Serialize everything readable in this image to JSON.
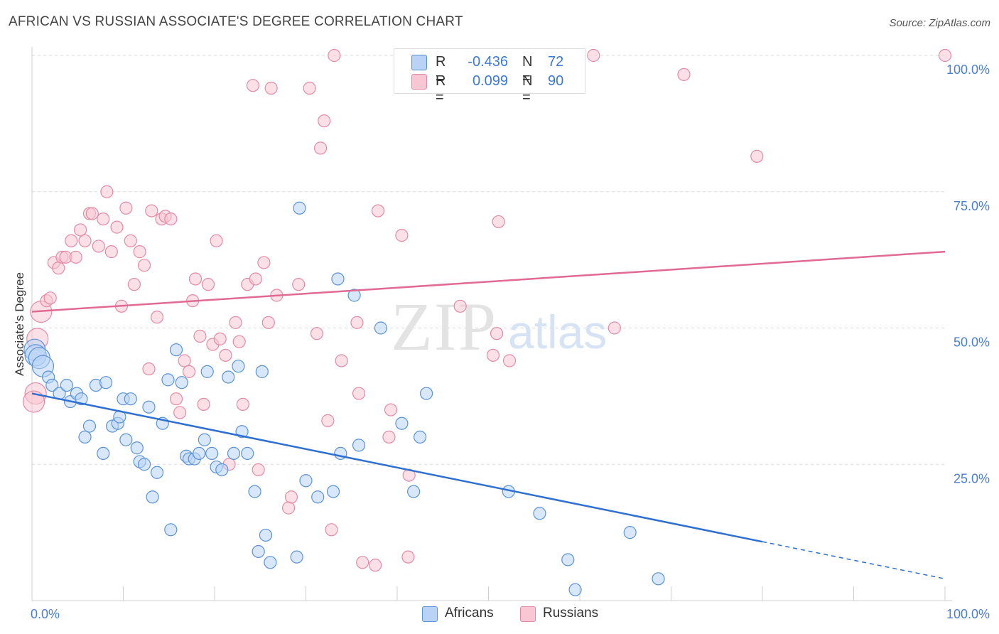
{
  "header": {
    "title": "AFRICAN VS RUSSIAN ASSOCIATE'S DEGREE CORRELATION CHART",
    "source": "Source: ZipAtlas.com"
  },
  "legend": {
    "africans": {
      "r_label": "R =",
      "r_value": "-0.436",
      "n_label": "N =",
      "n_value": "72"
    },
    "russians": {
      "r_label": "R =",
      "r_value": "0.099",
      "n_label": "N =",
      "n_value": "90"
    }
  },
  "bottom_legend": {
    "africans": "Africans",
    "russians": "Russians"
  },
  "watermark": {
    "zip": "ZIP",
    "atlas": "atlas"
  },
  "colors": {
    "africans_fill": "#b8d3f5",
    "africans_stroke": "#5b93d8",
    "africans_line": "#2e6fd1",
    "russians_fill": "#f9c6d4",
    "russians_stroke": "#e48aa6",
    "russians_line": "#e06a94",
    "tick_label": "#4a7fd4"
  },
  "chart_data": {
    "type": "scatter",
    "title": "AFRICAN VS RUSSIAN ASSOCIATE'S DEGREE CORRELATION CHART",
    "xlabel": "",
    "ylabel": "Associate's Degree",
    "xlim": [
      0,
      100
    ],
    "ylim": [
      0,
      100
    ],
    "x_tick_labels": [
      "0.0%",
      "100.0%"
    ],
    "y_tick_labels": [
      "25.0%",
      "50.0%",
      "75.0%",
      "100.0%"
    ],
    "y_ticks": [
      25,
      50,
      75,
      100
    ],
    "grid": true,
    "legend_position": "top-center",
    "series": [
      {
        "name": "Africans",
        "r": -0.436,
        "n": 72,
        "trend": {
          "x0": 0,
          "y0": 38,
          "x1": 100,
          "y1": 4,
          "solid_until": 80
        },
        "points": [
          [
            0.3,
            46
          ],
          [
            0.4,
            45
          ],
          [
            0.8,
            44.5
          ],
          [
            1.2,
            43
          ],
          [
            1.8,
            41
          ],
          [
            2.2,
            39.5
          ],
          [
            3,
            38
          ],
          [
            3.8,
            39.5
          ],
          [
            4.2,
            36.5
          ],
          [
            4.9,
            38
          ],
          [
            5.4,
            37
          ],
          [
            5.8,
            30
          ],
          [
            6.3,
            32
          ],
          [
            7,
            39.5
          ],
          [
            7.8,
            27
          ],
          [
            8.1,
            40
          ],
          [
            8.8,
            32
          ],
          [
            9.4,
            32.5
          ],
          [
            9.6,
            33.7
          ],
          [
            10,
            37
          ],
          [
            10.3,
            29.5
          ],
          [
            10.8,
            37
          ],
          [
            11.5,
            28
          ],
          [
            11.8,
            25.5
          ],
          [
            12.3,
            25
          ],
          [
            12.8,
            35.5
          ],
          [
            13.2,
            19
          ],
          [
            13.7,
            23.5
          ],
          [
            14.3,
            32.5
          ],
          [
            14.9,
            40.5
          ],
          [
            15.2,
            13
          ],
          [
            15.8,
            46
          ],
          [
            16.4,
            40
          ],
          [
            16.9,
            26.5
          ],
          [
            17.2,
            26
          ],
          [
            17.8,
            26
          ],
          [
            18.3,
            27
          ],
          [
            18.9,
            29.5
          ],
          [
            19.2,
            42
          ],
          [
            19.7,
            27
          ],
          [
            20.2,
            24.5
          ],
          [
            20.8,
            24
          ],
          [
            21.5,
            41
          ],
          [
            22.1,
            27
          ],
          [
            22.6,
            43
          ],
          [
            23,
            31
          ],
          [
            23.6,
            27
          ],
          [
            24.4,
            20
          ],
          [
            24.8,
            9
          ],
          [
            25.2,
            42
          ],
          [
            25.6,
            12
          ],
          [
            26.1,
            7
          ],
          [
            29,
            8
          ],
          [
            29.3,
            72
          ],
          [
            30,
            22
          ],
          [
            31.3,
            19
          ],
          [
            33,
            20
          ],
          [
            33.5,
            59
          ],
          [
            33.8,
            27
          ],
          [
            35.3,
            56
          ],
          [
            35.8,
            28.5
          ],
          [
            38.2,
            50
          ],
          [
            40.5,
            32.5
          ],
          [
            41.8,
            20
          ],
          [
            42.5,
            30
          ],
          [
            43.2,
            38
          ],
          [
            52.2,
            20
          ],
          [
            55.6,
            16
          ],
          [
            58.7,
            7.5
          ],
          [
            59.5,
            2
          ],
          [
            65.5,
            12.5
          ],
          [
            68.6,
            4
          ]
        ]
      },
      {
        "name": "Russians",
        "r": 0.099,
        "n": 90,
        "trend": {
          "x0": 0,
          "y0": 53,
          "x1": 100,
          "y1": 64
        },
        "points": [
          [
            0.4,
            38
          ],
          [
            0.6,
            48
          ],
          [
            1,
            53
          ],
          [
            1.6,
            55
          ],
          [
            2,
            55.5
          ],
          [
            2.4,
            62
          ],
          [
            2.9,
            61
          ],
          [
            3.3,
            63
          ],
          [
            3.7,
            63
          ],
          [
            4.3,
            66
          ],
          [
            4.8,
            63
          ],
          [
            5.3,
            68
          ],
          [
            5.8,
            66
          ],
          [
            6.3,
            71
          ],
          [
            6.6,
            71
          ],
          [
            7.3,
            65
          ],
          [
            7.8,
            70
          ],
          [
            8.2,
            75
          ],
          [
            8.7,
            64
          ],
          [
            9.3,
            68.5
          ],
          [
            9.8,
            54
          ],
          [
            10.3,
            72
          ],
          [
            10.8,
            66
          ],
          [
            11.2,
            58
          ],
          [
            11.8,
            64
          ],
          [
            12.3,
            61.5
          ],
          [
            12.8,
            42.5
          ],
          [
            13.1,
            71.5
          ],
          [
            13.7,
            52
          ],
          [
            14.2,
            70
          ],
          [
            14.6,
            70.5
          ],
          [
            15.2,
            70
          ],
          [
            15.8,
            37
          ],
          [
            16.2,
            34.5
          ],
          [
            16.7,
            44
          ],
          [
            17.2,
            42
          ],
          [
            17.6,
            55
          ],
          [
            17.9,
            59
          ],
          [
            18.4,
            48.5
          ],
          [
            18.8,
            36
          ],
          [
            19.3,
            58
          ],
          [
            19.8,
            47
          ],
          [
            20.2,
            66
          ],
          [
            20.6,
            48
          ],
          [
            21.2,
            45
          ],
          [
            21.6,
            25
          ],
          [
            22.3,
            51
          ],
          [
            22.7,
            47.5
          ],
          [
            23.1,
            36
          ],
          [
            23.6,
            58
          ],
          [
            24.2,
            94.5
          ],
          [
            24.5,
            59
          ],
          [
            24.8,
            24
          ],
          [
            25.4,
            62
          ],
          [
            25.9,
            51
          ],
          [
            26.2,
            94
          ],
          [
            26.8,
            56
          ],
          [
            28.1,
            17
          ],
          [
            28.4,
            19
          ],
          [
            29.2,
            58
          ],
          [
            30.4,
            94
          ],
          [
            31.2,
            49
          ],
          [
            31.6,
            83
          ],
          [
            32,
            88
          ],
          [
            32.4,
            33
          ],
          [
            32.8,
            13
          ],
          [
            33.1,
            100
          ],
          [
            33.9,
            44
          ],
          [
            35.6,
            51
          ],
          [
            35.8,
            38
          ],
          [
            36.2,
            7
          ],
          [
            37.6,
            6.5
          ],
          [
            37.9,
            71.5
          ],
          [
            39.1,
            30
          ],
          [
            39.3,
            35
          ],
          [
            40.5,
            67
          ],
          [
            41.2,
            8
          ],
          [
            41.3,
            23
          ],
          [
            46.9,
            54
          ],
          [
            50.5,
            45
          ],
          [
            50.9,
            49
          ],
          [
            51.1,
            69.5
          ],
          [
            52.3,
            44
          ],
          [
            59.8,
            100
          ],
          [
            61.5,
            100
          ],
          [
            63.8,
            50
          ],
          [
            71.4,
            96.5
          ],
          [
            79.4,
            81.5
          ],
          [
            100,
            100
          ],
          [
            0.2,
            36.5
          ]
        ]
      }
    ]
  }
}
